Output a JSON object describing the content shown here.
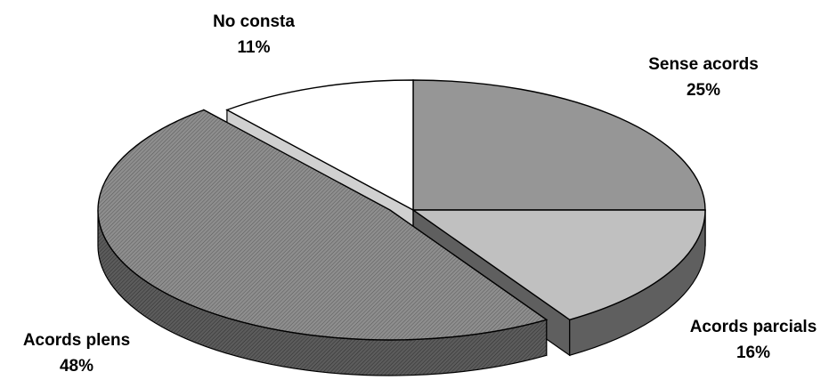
{
  "chart_data": {
    "type": "pie",
    "style": "3d-exploded",
    "slices": [
      {
        "label": "Sense acords",
        "percent_label": "25%",
        "value": 25,
        "fill": "#969696",
        "side": "#6e6e6e",
        "pattern": "none"
      },
      {
        "label": "Acords parcials",
        "percent_label": "16%",
        "value": 16,
        "fill": "#c0c0c0",
        "side": "#5f5f5f",
        "pattern": "none"
      },
      {
        "label": "Acords plens",
        "percent_label": "48%",
        "value": 48,
        "fill": "#8a8a8a",
        "side": "#4a4a4a",
        "pattern": "hatched",
        "exploded": true
      },
      {
        "label": "No consta",
        "percent_label": "11%",
        "value": 11,
        "fill": "#ffffff",
        "side": "#d0d0d0",
        "pattern": "none"
      }
    ]
  }
}
